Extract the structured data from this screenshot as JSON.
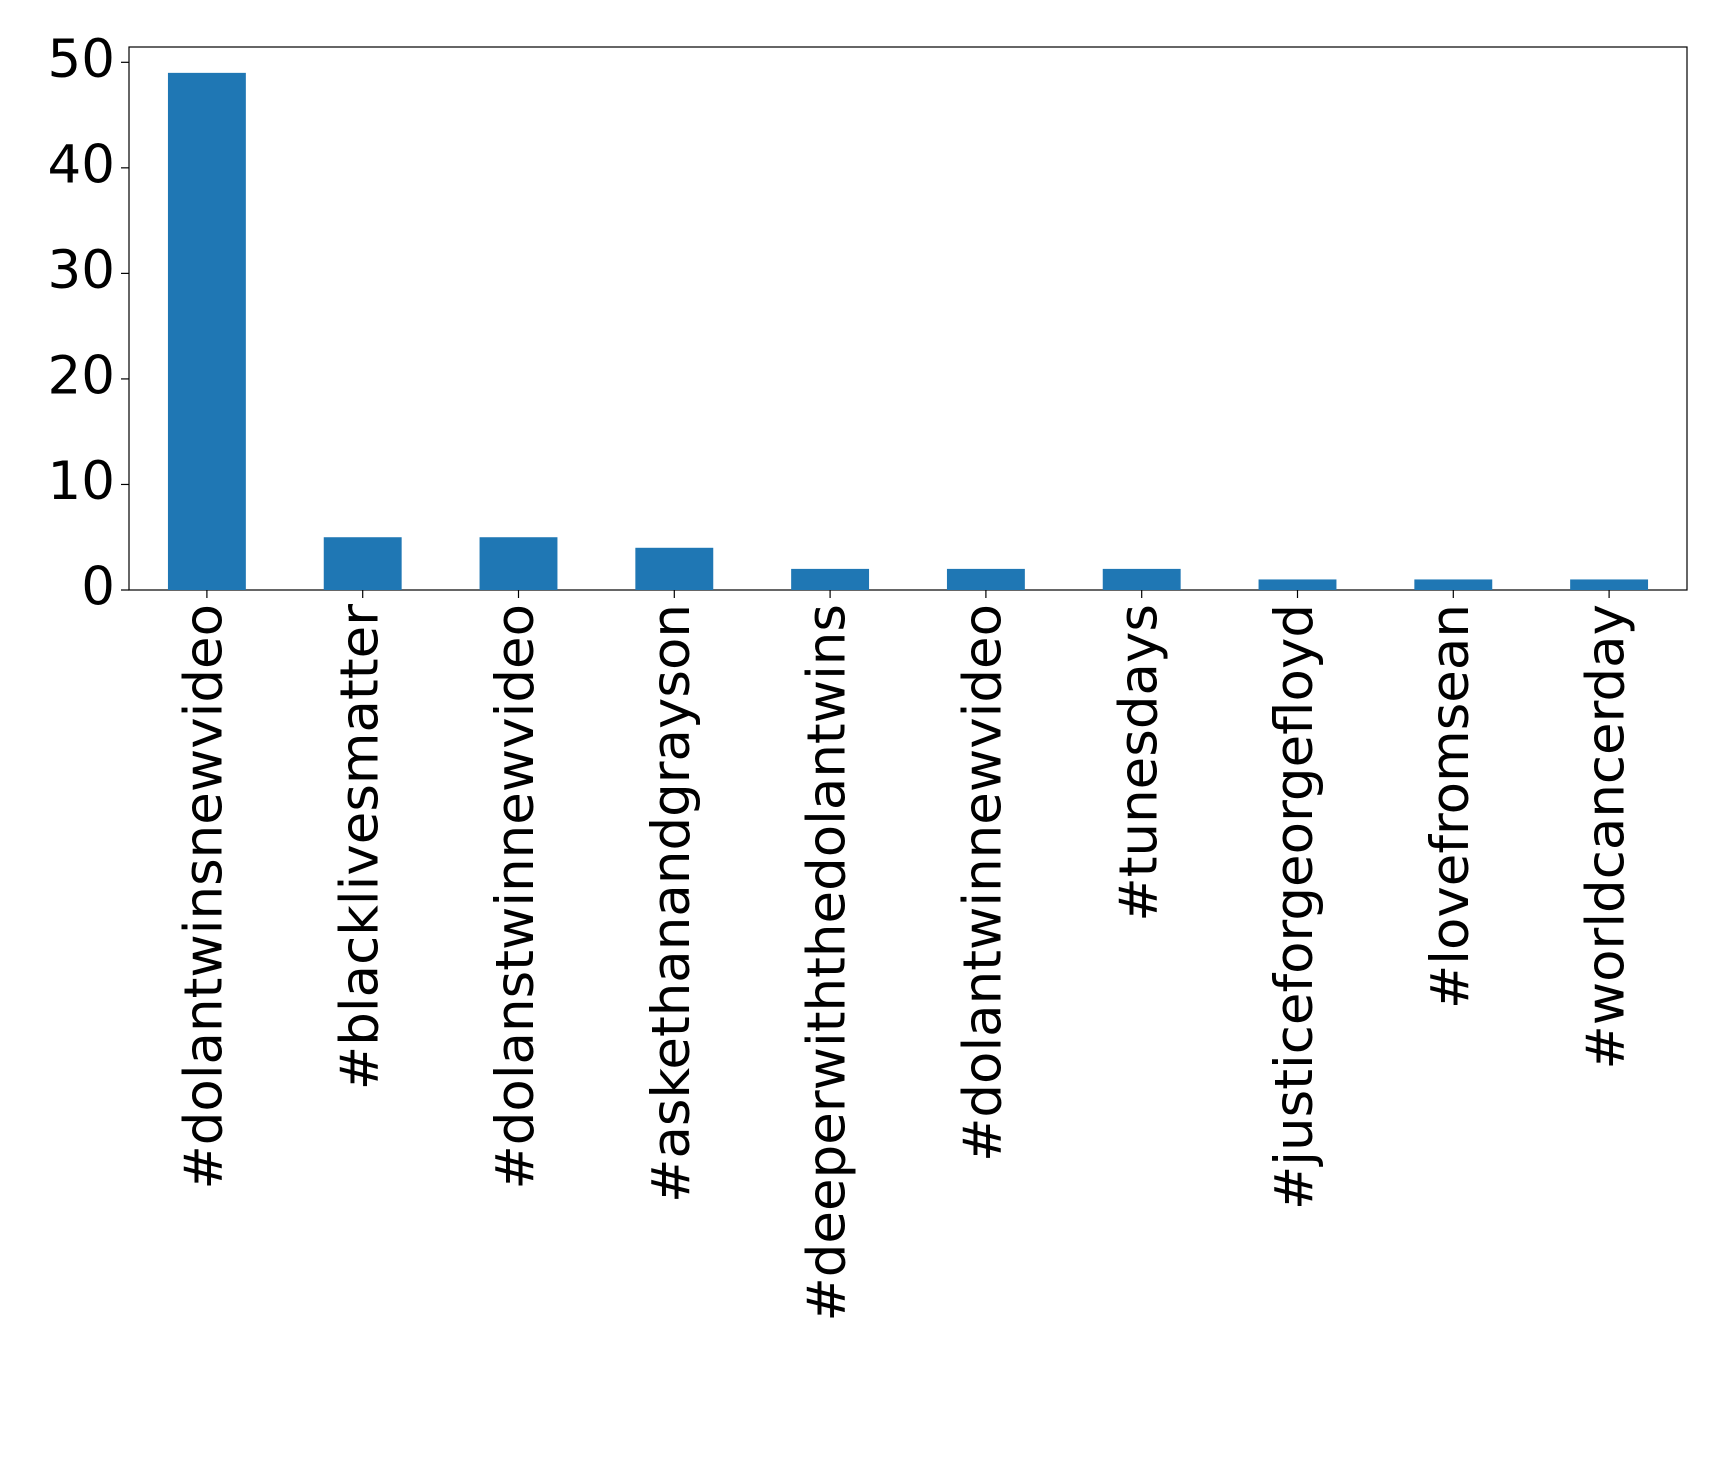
{
  "chart_data": {
    "type": "bar",
    "categories": [
      "#dolantwinsnewvideo",
      "#blacklivesmatter",
      "#dolanstwinnewvideo",
      "#askethanandgrayson",
      "#deeperwiththedolantwins",
      "#dolantwinnewvideo",
      "#tunesdays",
      "#justiceforgeorgefloyd",
      "#lovefromsean",
      "#worldcancerday"
    ],
    "values": [
      49,
      5,
      5,
      4,
      2,
      2,
      2,
      1,
      1,
      1
    ],
    "color": "#1f77b4",
    "ylim": [
      0,
      51.45
    ],
    "yticks": [
      0,
      10,
      20,
      30,
      40,
      50
    ],
    "grid": false
  }
}
